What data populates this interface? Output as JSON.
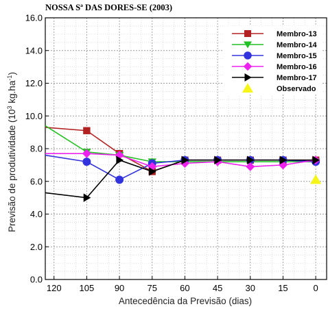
{
  "chart_data": {
    "type": "line",
    "title": "NOSSA Sª DAS DORES-SE (2003)",
    "xlabel": "Antecedência da Previsão (dias)",
    "ylabel_main": "Previsão de produtividade (10",
    "ylabel_sup": "3",
    "ylabel_unit": " kg.ha",
    "ylabel_unit_sup": "-1",
    "ylabel_end": ")",
    "x_ticks": [
      "120",
      "105",
      "90",
      "75",
      "60",
      "45",
      "30",
      "15",
      "0"
    ],
    "y_ticks": [
      "0.0",
      "2.0",
      "4.0",
      "6.0",
      "8.0",
      "10.0",
      "12.0",
      "14.0",
      "16.0"
    ],
    "xlim": [
      124,
      -5
    ],
    "ylim": [
      0,
      16
    ],
    "x_reversed": true,
    "grid": true,
    "legend_position": "top-right",
    "series": [
      {
        "name": "Membro-13",
        "color": "#b22222",
        "marker": "square",
        "x": [
          124,
          105,
          90,
          75,
          60,
          45,
          30,
          15,
          0
        ],
        "y": [
          9.3,
          9.1,
          7.7,
          6.6,
          7.3,
          7.3,
          7.3,
          7.3,
          7.3
        ]
      },
      {
        "name": "Membro-14",
        "color": "#22c022",
        "marker": "triangle-down",
        "x": [
          124,
          105,
          90,
          75,
          60,
          45,
          30,
          15,
          0
        ],
        "y": [
          9.4,
          7.8,
          7.6,
          7.2,
          7.2,
          7.2,
          7.2,
          7.2,
          7.2
        ]
      },
      {
        "name": "Membro-15",
        "color": "#3333dd",
        "marker": "circle",
        "x": [
          124,
          105,
          90,
          75,
          60,
          45,
          30,
          15,
          0
        ],
        "y": [
          7.6,
          7.2,
          6.1,
          7.1,
          7.3,
          7.3,
          7.3,
          7.3,
          7.2
        ]
      },
      {
        "name": "Membro-16",
        "color": "#ee22ee",
        "marker": "diamond",
        "x": [
          124,
          105,
          90,
          75,
          60,
          45,
          30,
          15,
          0
        ],
        "y": [
          7.7,
          7.7,
          7.6,
          6.9,
          7.1,
          7.2,
          6.9,
          7.0,
          7.3
        ]
      },
      {
        "name": "Membro-17",
        "color": "#000000",
        "marker": "triangle-right",
        "x": [
          124,
          105,
          90,
          75,
          60,
          45,
          30,
          15,
          0
        ],
        "y": [
          5.3,
          5.0,
          7.3,
          6.6,
          7.3,
          7.3,
          7.3,
          7.3,
          7.3
        ]
      },
      {
        "name": "Observado",
        "color": "#f5f51a",
        "marker": "triangle-up",
        "line": false,
        "x": [
          0
        ],
        "y": [
          6.1
        ]
      }
    ]
  }
}
